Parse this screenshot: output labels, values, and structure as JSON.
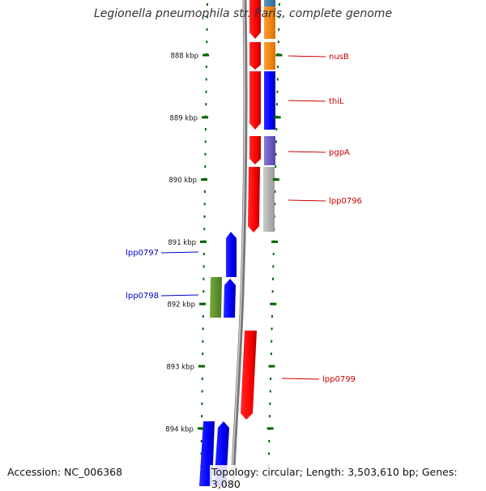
{
  "title": "Legionella pneumophila str. Paris, complete genome",
  "accession": "Accession: NC_006368",
  "topology": "Topology: circular; Length: 3,503,610 bp; Genes: 3,080",
  "ticks": [
    {
      "kbp": 888,
      "label": "888 kbp"
    },
    {
      "kbp": 889,
      "label": "889 kbp"
    },
    {
      "kbp": 890,
      "label": "890 kbp"
    },
    {
      "kbp": 891,
      "label": "891 kbp"
    },
    {
      "kbp": 892,
      "label": "892 kbp"
    },
    {
      "kbp": 893,
      "label": "893 kbp"
    },
    {
      "kbp": 894,
      "label": "894 kbp"
    }
  ],
  "gene_labels": [
    {
      "text": "nusB",
      "strand": "forward",
      "color": "#cc0000"
    },
    {
      "text": "thiL",
      "strand": "forward",
      "color": "#cc0000"
    },
    {
      "text": "pgpA",
      "strand": "forward",
      "color": "#cc0000"
    },
    {
      "text": "lpp0796",
      "strand": "forward",
      "color": "#cc0000"
    },
    {
      "text": "lpp0797",
      "strand": "reverse",
      "color": "#0000cc"
    },
    {
      "text": "lpp0798",
      "strand": "reverse",
      "color": "#0000cc"
    },
    {
      "text": "lpp0799",
      "strand": "forward",
      "color": "#cc0000"
    }
  ],
  "colors": {
    "forward_cds": "#ff0000",
    "reverse_cds": "#0000ff",
    "tick": "#006600",
    "backbone": "#888888",
    "orange": "#ff8800",
    "purple": "#7766cc",
    "grey": "#bbbbbb",
    "olive": "#669933",
    "steel": "#4488bb"
  }
}
